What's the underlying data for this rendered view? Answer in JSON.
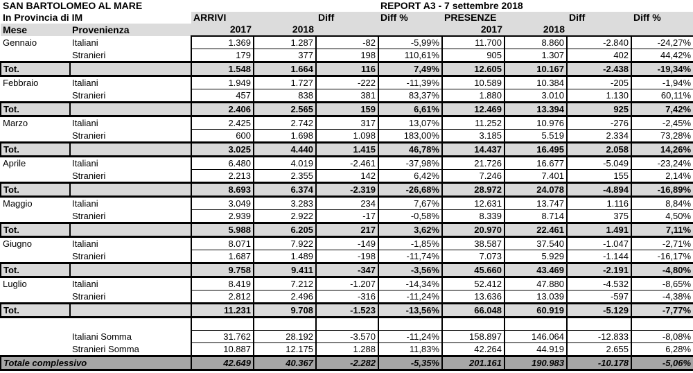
{
  "header": {
    "title": "SAN BARTOLOMEO AL MARE",
    "subtitle": "In Provincia di IM",
    "report": "REPORT A3 - 7 settembre 2018",
    "arrivi": "ARRIVI",
    "presenze": "PRESENZE",
    "diff": "Diff",
    "diff_pct": "Diff %",
    "mese": "Mese",
    "provenienza": "Provenienza",
    "y2017": "2017",
    "y2018": "2018"
  },
  "tot_label": "Tot.",
  "months": [
    {
      "name": "Gennaio",
      "rows": [
        [
          "Italiani",
          "1.369",
          "1.287",
          "-82",
          "-5,99%",
          "11.700",
          "8.860",
          "-2.840",
          "-24,27%"
        ],
        [
          "Stranieri",
          "179",
          "377",
          "198",
          "110,61%",
          "905",
          "1.307",
          "402",
          "44,42%"
        ]
      ],
      "tot": [
        "1.548",
        "1.664",
        "116",
        "7,49%",
        "12.605",
        "10.167",
        "-2.438",
        "-19,34%"
      ]
    },
    {
      "name": "Febbraio",
      "rows": [
        [
          "Italiani",
          "1.949",
          "1.727",
          "-222",
          "-11,39%",
          "10.589",
          "10.384",
          "-205",
          "-1,94%"
        ],
        [
          "Stranieri",
          "457",
          "838",
          "381",
          "83,37%",
          "1.880",
          "3.010",
          "1.130",
          "60,11%"
        ]
      ],
      "tot": [
        "2.406",
        "2.565",
        "159",
        "6,61%",
        "12.469",
        "13.394",
        "925",
        "7,42%"
      ]
    },
    {
      "name": "Marzo",
      "rows": [
        [
          "Italiani",
          "2.425",
          "2.742",
          "317",
          "13,07%",
          "11.252",
          "10.976",
          "-276",
          "-2,45%"
        ],
        [
          "Stranieri",
          "600",
          "1.698",
          "1.098",
          "183,00%",
          "3.185",
          "5.519",
          "2.334",
          "73,28%"
        ]
      ],
      "tot": [
        "3.025",
        "4.440",
        "1.415",
        "46,78%",
        "14.437",
        "16.495",
        "2.058",
        "14,26%"
      ]
    },
    {
      "name": "Aprile",
      "rows": [
        [
          "Italiani",
          "6.480",
          "4.019",
          "-2.461",
          "-37,98%",
          "21.726",
          "16.677",
          "-5.049",
          "-23,24%"
        ],
        [
          "Stranieri",
          "2.213",
          "2.355",
          "142",
          "6,42%",
          "7.246",
          "7.401",
          "155",
          "2,14%"
        ]
      ],
      "tot": [
        "8.693",
        "6.374",
        "-2.319",
        "-26,68%",
        "28.972",
        "24.078",
        "-4.894",
        "-16,89%"
      ]
    },
    {
      "name": "Maggio",
      "rows": [
        [
          "Italiani",
          "3.049",
          "3.283",
          "234",
          "7,67%",
          "12.631",
          "13.747",
          "1.116",
          "8,84%"
        ],
        [
          "Stranieri",
          "2.939",
          "2.922",
          "-17",
          "-0,58%",
          "8.339",
          "8.714",
          "375",
          "4,50%"
        ]
      ],
      "tot": [
        "5.988",
        "6.205",
        "217",
        "3,62%",
        "20.970",
        "22.461",
        "1.491",
        "7,11%"
      ]
    },
    {
      "name": "Giugno",
      "rows": [
        [
          "Italiani",
          "8.071",
          "7.922",
          "-149",
          "-1,85%",
          "38.587",
          "37.540",
          "-1.047",
          "-2,71%"
        ],
        [
          "Stranieri",
          "1.687",
          "1.489",
          "-198",
          "-11,74%",
          "7.073",
          "5.929",
          "-1.144",
          "-16,17%"
        ]
      ],
      "tot": [
        "9.758",
        "9.411",
        "-347",
        "-3,56%",
        "45.660",
        "43.469",
        "-2.191",
        "-4,80%"
      ]
    },
    {
      "name": "Luglio",
      "rows": [
        [
          "Italiani",
          "8.419",
          "7.212",
          "-1.207",
          "-14,34%",
          "52.412",
          "47.880",
          "-4.532",
          "-8,65%"
        ],
        [
          "Stranieri",
          "2.812",
          "2.496",
          "-316",
          "-11,24%",
          "13.636",
          "13.039",
          "-597",
          "-4,38%"
        ]
      ],
      "tot": [
        "11.231",
        "9.708",
        "-1.523",
        "-13,56%",
        "66.048",
        "60.919",
        "-5.129",
        "-7,77%"
      ]
    }
  ],
  "sums": [
    [
      "Italiani Somma",
      "31.762",
      "28.192",
      "-3.570",
      "-11,24%",
      "158.897",
      "146.064",
      "-12.833",
      "-8,08%"
    ],
    [
      "Stranieri Somma",
      "10.887",
      "12.175",
      "1.288",
      "11,83%",
      "42.264",
      "44.919",
      "2.655",
      "6,28%"
    ]
  ],
  "grand": {
    "label": "Totale complessivo",
    "values": [
      "42.649",
      "40.367",
      "-2.282",
      "-5,35%",
      "201.161",
      "190.983",
      "-10.178",
      "-5,06%"
    ]
  }
}
